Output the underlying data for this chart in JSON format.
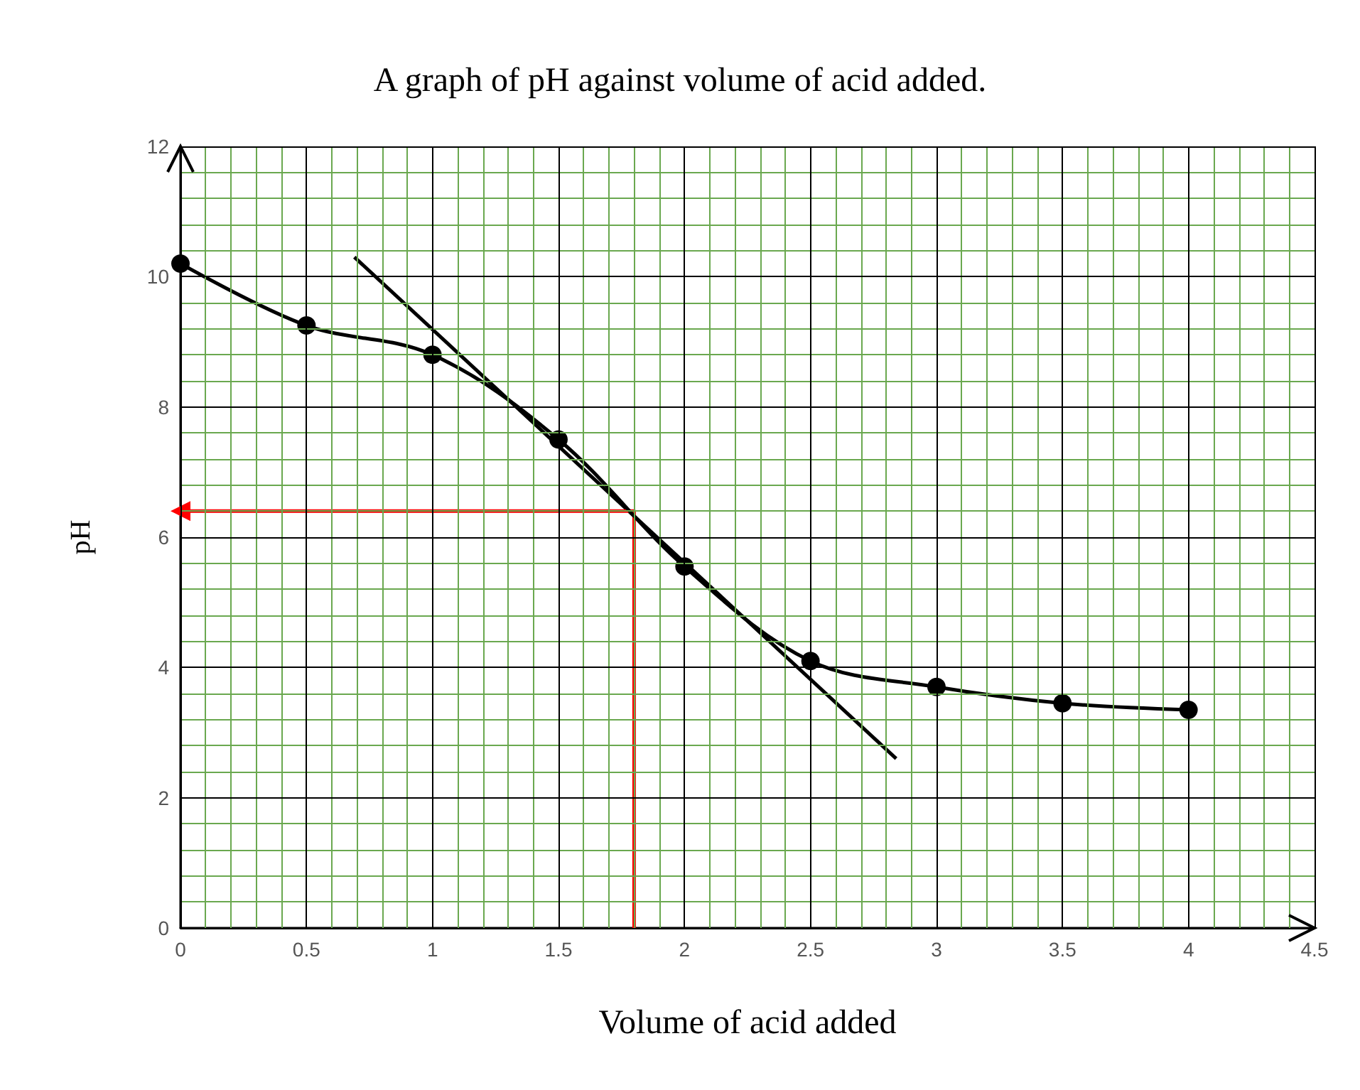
{
  "chart_data": {
    "type": "line",
    "title": "A graph of pH against volume of acid added.",
    "xlabel": "Volume of acid added",
    "ylabel": "pH",
    "xlim": [
      0,
      4.5
    ],
    "xticks": [
      0,
      {
        "value": 0.1,
        "label": null
      },
      {
        "value": 0.2,
        "label": null
      },
      {
        "value": 0.3,
        "label": null
      },
      {
        "value": 0.4,
        "label": null
      },
      0.5,
      {
        "value": 0.6,
        "label": null
      },
      {
        "value": 0.7,
        "label": null
      },
      {
        "value": 0.8,
        "label": null
      },
      {
        "value": 0.9,
        "label": null
      },
      1,
      {
        "value": 1.1,
        "label": null
      },
      {
        "value": 1.2,
        "label": null
      },
      {
        "value": 1.3,
        "label": null
      },
      {
        "value": 1.4,
        "label": null
      },
      1.5,
      {
        "value": 1.6,
        "label": null
      },
      {
        "value": 1.7,
        "label": null
      },
      {
        "value": 1.8,
        "label": null
      },
      {
        "value": 1.9,
        "label": null
      },
      2,
      {
        "value": 2.1,
        "label": null
      },
      {
        "value": 2.2,
        "label": null
      },
      {
        "value": 2.3,
        "label": null
      },
      {
        "value": 2.4,
        "label": null
      },
      2.5,
      {
        "value": 2.6,
        "label": null
      },
      {
        "value": 2.7,
        "label": null
      },
      {
        "value": 2.8,
        "label": null
      },
      {
        "value": 2.9,
        "label": null
      },
      3,
      {
        "value": 3.1,
        "label": null
      },
      {
        "value": 3.2,
        "label": null
      },
      {
        "value": 3.3,
        "label": null
      },
      {
        "value": 3.4,
        "label": null
      },
      3.5,
      {
        "value": 3.6,
        "label": null
      },
      {
        "value": 3.7,
        "label": null
      },
      {
        "value": 3.8,
        "label": null
      },
      {
        "value": 3.9,
        "label": null
      },
      4,
      {
        "value": 4.1,
        "label": null
      },
      {
        "value": 4.2,
        "label": null
      },
      {
        "value": 4.3,
        "label": null
      },
      {
        "value": 4.4,
        "label": null
      },
      4.5
    ],
    "ylim": [
      0,
      12
    ],
    "yticks": [
      0,
      {
        "value": 0.4,
        "label": null
      },
      {
        "value": 0.8,
        "label": null
      },
      {
        "value": 1.2,
        "label": null
      },
      {
        "value": 1.6,
        "label": null
      },
      2,
      {
        "value": 2.4,
        "label": null
      },
      {
        "value": 2.8,
        "label": null
      },
      {
        "value": 3.2,
        "label": null
      },
      {
        "value": 3.6,
        "label": null
      },
      4,
      {
        "value": 4.4,
        "label": null
      },
      {
        "value": 4.8,
        "label": null
      },
      {
        "value": 5.2,
        "label": null
      },
      {
        "value": 5.6,
        "label": null
      },
      6,
      {
        "value": 6.4,
        "label": null
      },
      {
        "value": 6.8,
        "label": null
      },
      {
        "value": 7.2,
        "label": null
      },
      {
        "value": 7.6,
        "label": null
      },
      8,
      {
        "value": 8.4,
        "label": null
      },
      {
        "value": 8.8,
        "label": null
      },
      {
        "value": 9.2,
        "label": null
      },
      {
        "value": 9.6,
        "label": null
      },
      10,
      {
        "value": 10.4,
        "label": null
      },
      {
        "value": 10.8,
        "label": null
      },
      {
        "value": 11.2,
        "label": null
      },
      {
        "value": 11.6,
        "label": null
      },
      12
    ],
    "grid": true,
    "series": [
      {
        "color": "#000000",
        "marker": "circle",
        "x": [
          0,
          0.5,
          1,
          1.5,
          2,
          2.5,
          3,
          3.5,
          4
        ],
        "values": [
          10.2,
          9.25,
          8.8,
          7.5,
          5.55,
          4.1,
          3.7,
          3.45,
          3.35
        ]
      },
      {
        "color": "#000000",
        "marker": "none",
        "x": [
          0.69,
          2.84
        ],
        "values": [
          10.3,
          2.6
        ]
      },
      {
        "color": "#ff0000",
        "marker": "none",
        "x": [
          1.8,
          1.8,
          0
        ],
        "values": [
          0,
          6.4,
          6.4
        ]
      }
    ]
  }
}
